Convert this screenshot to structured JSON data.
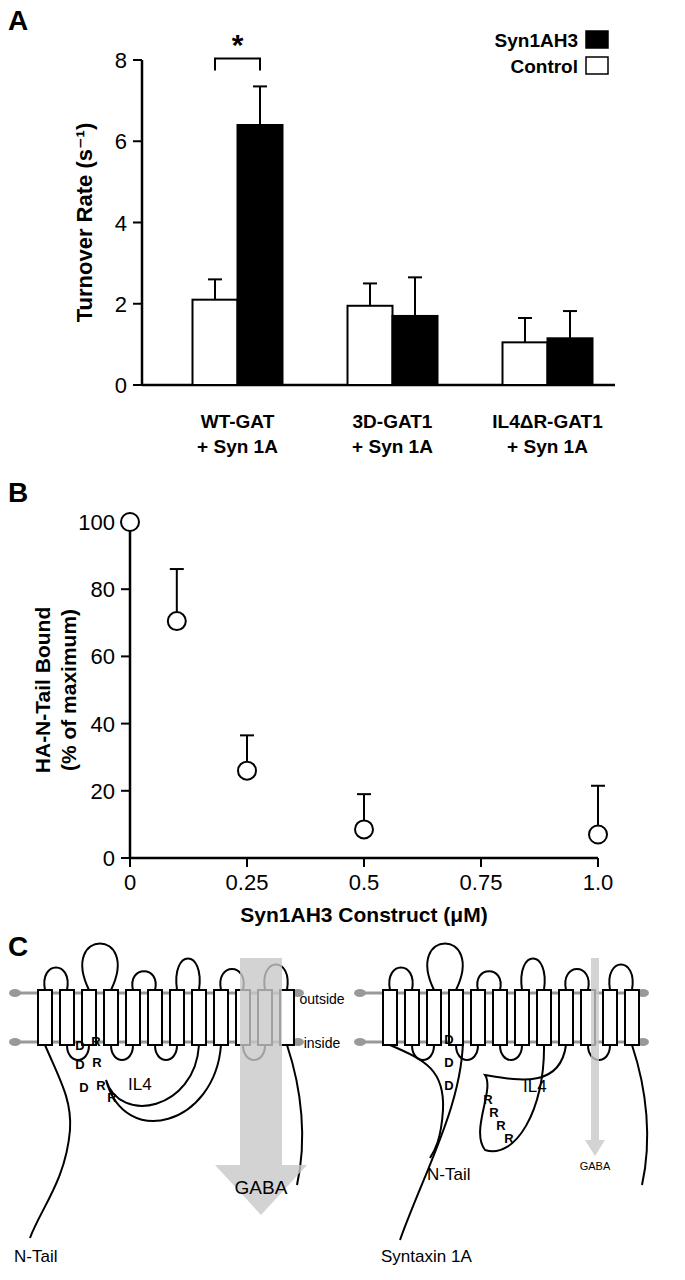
{
  "chart_data": [
    {
      "type": "bar",
      "title": "A",
      "y_label": "Turnover Rate (s⁻¹)",
      "categories": [
        "WT-GAT\n+ Syn 1A",
        "3D-GAT1\n+ Syn 1A",
        "IL4ΔR-GAT1\n+ Syn 1A"
      ],
      "series": [
        {
          "name": "Control",
          "color": "#ffffff",
          "values": [
            2.1,
            1.95,
            1.05
          ],
          "errors": [
            0.5,
            0.55,
            0.6
          ]
        },
        {
          "name": "Syn1AH3",
          "color": "#000000",
          "values": [
            6.4,
            1.7,
            1.15
          ],
          "errors": [
            0.95,
            0.95,
            0.67
          ]
        }
      ],
      "ylim": [
        0,
        8
      ],
      "yticks": [
        0,
        2,
        4,
        6,
        8
      ],
      "legend": "top-right",
      "annotations": [
        {
          "text": "*",
          "category": 0
        }
      ]
    },
    {
      "type": "scatter",
      "title": "B",
      "x_label": "Syn1AH3 Construct (μM)",
      "y_label": "HA-N-Tail Bound\n(% of maximum)",
      "x": [
        0,
        0.1,
        0.25,
        0.5,
        1.0
      ],
      "values": [
        100,
        70.5,
        26,
        8.5,
        7
      ],
      "errors": [
        0,
        15.5,
        10.5,
        10.5,
        14.5
      ],
      "marker": "circle",
      "xlim": [
        0,
        1
      ],
      "xticks": [
        0,
        0.25,
        0.5,
        0.75,
        {
          "value": 1,
          "label": "1.0"
        }
      ],
      "ylim": [
        0,
        100
      ],
      "yticks": [
        0,
        20,
        40,
        60,
        80,
        100
      ]
    }
  ],
  "diagram": {
    "label": "C",
    "outside": "outside",
    "inside": "inside",
    "panels": [
      {
        "flux_label": "GABA",
        "n_tail": "N-Tail",
        "loop": "IL4",
        "residues": [
          "D",
          "R",
          "D",
          "R",
          "D",
          "R",
          "R"
        ]
      },
      {
        "flux_label": "GABA",
        "n_tail": "N-Tail",
        "loop": "IL4",
        "partner": "Syntaxin 1A",
        "residues": [
          "D",
          "D",
          "D",
          "R",
          "R",
          "R",
          "R"
        ]
      }
    ]
  }
}
